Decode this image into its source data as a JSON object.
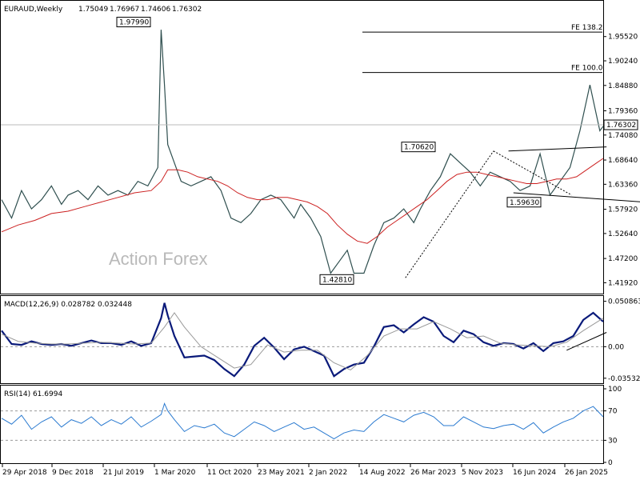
{
  "chart_data": [
    {
      "type": "line",
      "header": {
        "symbol": "EURAUD,Weekly",
        "open": "1.75049",
        "high": "1.76967",
        "low": "1.74606",
        "close": "1.76302"
      },
      "watermark": "Action Forex",
      "ylim": [
        1.3973,
        2.0
      ],
      "y_ticks": [
        "1.95520",
        "1.90240",
        "1.84880",
        "1.79360",
        "1.74080",
        "1.68640",
        "1.63360",
        "1.57920",
        "1.52640",
        "1.47200",
        "1.41920"
      ],
      "y_tick_values": [
        1.9552,
        1.9024,
        1.8488,
        1.7936,
        1.7408,
        1.6864,
        1.6336,
        1.5792,
        1.5264,
        1.472,
        1.4192
      ],
      "current_price_label": "1.76302",
      "current_price": 1.76302,
      "x_ticks": [
        "29 Apr 2018",
        "9 Dec 2018",
        "21 Jul 2019",
        "1 Mar 2020",
        "11 Oct 2020",
        "23 May 2021",
        "2 Jan 2022",
        "14 Aug 2022",
        "26 Mar 2023",
        "5 Nov 2023",
        "16 Jun 2024",
        "26 Jan 2025"
      ],
      "annotations": [
        {
          "label": "1.97990",
          "value": 1.9799
        },
        {
          "label": "1.70620",
          "value": 1.7062
        },
        {
          "label": "1.59630",
          "value": 1.5963
        },
        {
          "label": "1.42810",
          "value": 1.4281
        }
      ],
      "fib_levels": [
        {
          "label": "FE 138.2",
          "value": 1.965
        },
        {
          "label": "FE 100.0",
          "value": 1.877
        }
      ],
      "series": [
        {
          "name": "",
          "role": "price",
          "color": "#2f4f4f",
          "x": [
            0,
            6,
            12,
            18,
            24,
            30,
            36,
            40,
            46,
            52,
            58,
            64,
            70,
            76,
            82,
            88,
            94,
            96,
            98,
            100,
            104,
            108,
            114,
            120,
            126,
            132,
            138,
            144,
            150,
            156,
            162,
            168,
            172,
            176,
            180,
            186,
            192,
            198,
            204,
            208,
            212,
            218,
            224,
            230,
            236,
            242,
            248,
            252,
            258,
            264,
            270,
            276,
            282,
            288,
            294,
            300,
            306,
            312,
            318,
            324,
            330,
            336,
            342,
            348,
            354,
            360,
            362
          ],
          "y": [
            1.6,
            1.56,
            1.62,
            1.58,
            1.6,
            1.63,
            1.59,
            1.61,
            1.62,
            1.6,
            1.63,
            1.61,
            1.62,
            1.61,
            1.64,
            1.63,
            1.67,
            1.97,
            1.85,
            1.72,
            1.68,
            1.64,
            1.63,
            1.64,
            1.65,
            1.62,
            1.56,
            1.55,
            1.57,
            1.6,
            1.61,
            1.6,
            1.58,
            1.56,
            1.59,
            1.56,
            1.52,
            1.44,
            1.47,
            1.49,
            1.44,
            1.44,
            1.5,
            1.55,
            1.56,
            1.58,
            1.55,
            1.58,
            1.62,
            1.65,
            1.7,
            1.68,
            1.66,
            1.63,
            1.66,
            1.65,
            1.64,
            1.62,
            1.63,
            1.7,
            1.61,
            1.64,
            1.67,
            1.75,
            1.85,
            1.75,
            1.76
          ]
        },
        {
          "name": "",
          "role": "moving-average",
          "color": "#cc2020",
          "x": [
            0,
            10,
            20,
            30,
            40,
            50,
            60,
            70,
            80,
            90,
            96,
            100,
            106,
            112,
            118,
            124,
            130,
            136,
            142,
            148,
            154,
            160,
            166,
            172,
            178,
            184,
            190,
            196,
            202,
            208,
            214,
            220,
            226,
            232,
            238,
            244,
            250,
            256,
            262,
            268,
            274,
            280,
            286,
            292,
            298,
            304,
            310,
            316,
            322,
            328,
            334,
            340,
            346,
            352,
            358,
            362
          ],
          "y": [
            1.53,
            1.545,
            1.555,
            1.57,
            1.575,
            1.585,
            1.595,
            1.605,
            1.615,
            1.62,
            1.64,
            1.665,
            1.665,
            1.66,
            1.65,
            1.645,
            1.64,
            1.63,
            1.615,
            1.605,
            1.6,
            1.6,
            1.605,
            1.605,
            1.6,
            1.595,
            1.585,
            1.57,
            1.545,
            1.525,
            1.51,
            1.505,
            1.52,
            1.54,
            1.555,
            1.57,
            1.585,
            1.6,
            1.62,
            1.64,
            1.655,
            1.66,
            1.66,
            1.655,
            1.65,
            1.645,
            1.64,
            1.635,
            1.635,
            1.64,
            1.645,
            1.645,
            1.65,
            1.665,
            1.68,
            1.69
          ]
        }
      ]
    },
    {
      "type": "line",
      "title": "MACD(12,26,9) 0.028782 0.032448",
      "ylim": [
        -0.04,
        0.055
      ],
      "y_ticks": [
        "0.050863",
        "0.00",
        "-0.035322"
      ],
      "y_tick_values": [
        0.050863,
        0.0,
        -0.035322
      ],
      "series": [
        {
          "name": "",
          "role": "macd",
          "color": "#0a1a7a",
          "x": [
            0,
            6,
            12,
            18,
            24,
            30,
            36,
            42,
            48,
            54,
            60,
            66,
            72,
            78,
            84,
            90,
            96,
            98,
            100,
            104,
            110,
            116,
            122,
            128,
            134,
            140,
            146,
            152,
            158,
            164,
            170,
            176,
            182,
            188,
            194,
            200,
            206,
            212,
            218,
            224,
            230,
            236,
            242,
            248,
            254,
            260,
            266,
            272,
            278,
            284,
            290,
            296,
            302,
            308,
            314,
            320,
            326,
            332,
            338,
            344,
            350,
            356,
            362
          ],
          "y": [
            0.018,
            0.003,
            0.002,
            0.006,
            0.003,
            0.002,
            0.003,
            0.001,
            0.004,
            0.007,
            0.004,
            0.004,
            0.002,
            0.006,
            0.001,
            0.004,
            0.032,
            0.049,
            0.035,
            0.012,
            -0.012,
            -0.011,
            -0.01,
            -0.015,
            -0.025,
            -0.033,
            -0.02,
            0.001,
            0.01,
            -0.001,
            -0.014,
            -0.003,
            0.0,
            -0.005,
            -0.01,
            -0.033,
            -0.025,
            -0.02,
            -0.018,
            0.0,
            0.022,
            0.024,
            0.016,
            0.025,
            0.033,
            0.028,
            0.012,
            0.005,
            0.018,
            0.014,
            0.005,
            0.001,
            0.004,
            0.003,
            -0.002,
            0.004,
            -0.005,
            0.004,
            0.006,
            0.012,
            0.03,
            0.038,
            0.028
          ]
        },
        {
          "name": "",
          "role": "signal",
          "color": "#999999",
          "x": [
            0,
            10,
            20,
            30,
            40,
            50,
            60,
            70,
            80,
            90,
            98,
            104,
            110,
            120,
            130,
            140,
            150,
            160,
            170,
            180,
            190,
            200,
            210,
            220,
            230,
            240,
            250,
            260,
            270,
            280,
            290,
            300,
            310,
            320,
            330,
            340,
            350,
            362
          ],
          "y": [
            0.014,
            0.006,
            0.004,
            0.003,
            0.003,
            0.004,
            0.005,
            0.004,
            0.003,
            0.004,
            0.022,
            0.038,
            0.022,
            0.0,
            -0.012,
            -0.024,
            -0.02,
            0.002,
            -0.006,
            -0.004,
            -0.004,
            -0.018,
            -0.026,
            -0.01,
            0.012,
            0.02,
            0.02,
            0.028,
            0.02,
            0.01,
            0.012,
            0.004,
            0.002,
            0.001,
            0.0,
            0.005,
            0.018,
            0.032
          ]
        }
      ]
    },
    {
      "type": "line",
      "title": "RSI(14) 61.6994",
      "ylim": [
        0,
        100
      ],
      "y_ticks": [
        "100",
        "70",
        "30",
        "0"
      ],
      "y_tick_values": [
        100,
        70,
        30,
        0
      ],
      "series": [
        {
          "name": "",
          "role": "rsi",
          "color": "#2a7ad0",
          "x": [
            0,
            6,
            12,
            18,
            24,
            30,
            36,
            42,
            48,
            54,
            60,
            66,
            72,
            78,
            84,
            90,
            96,
            98,
            100,
            104,
            110,
            116,
            122,
            128,
            134,
            140,
            146,
            152,
            158,
            164,
            170,
            176,
            182,
            188,
            194,
            200,
            206,
            212,
            218,
            224,
            230,
            236,
            242,
            248,
            254,
            260,
            266,
            272,
            278,
            284,
            290,
            296,
            302,
            308,
            314,
            320,
            326,
            332,
            338,
            344,
            350,
            356,
            362
          ],
          "y": [
            60,
            52,
            64,
            45,
            55,
            62,
            48,
            58,
            53,
            62,
            50,
            58,
            52,
            62,
            48,
            56,
            65,
            80,
            70,
            58,
            42,
            50,
            47,
            52,
            40,
            35,
            45,
            55,
            50,
            42,
            48,
            54,
            45,
            48,
            40,
            32,
            40,
            44,
            42,
            55,
            65,
            60,
            55,
            64,
            68,
            62,
            50,
            50,
            62,
            55,
            48,
            46,
            50,
            52,
            45,
            54,
            40,
            48,
            55,
            60,
            70,
            76,
            62
          ]
        }
      ]
    }
  ]
}
